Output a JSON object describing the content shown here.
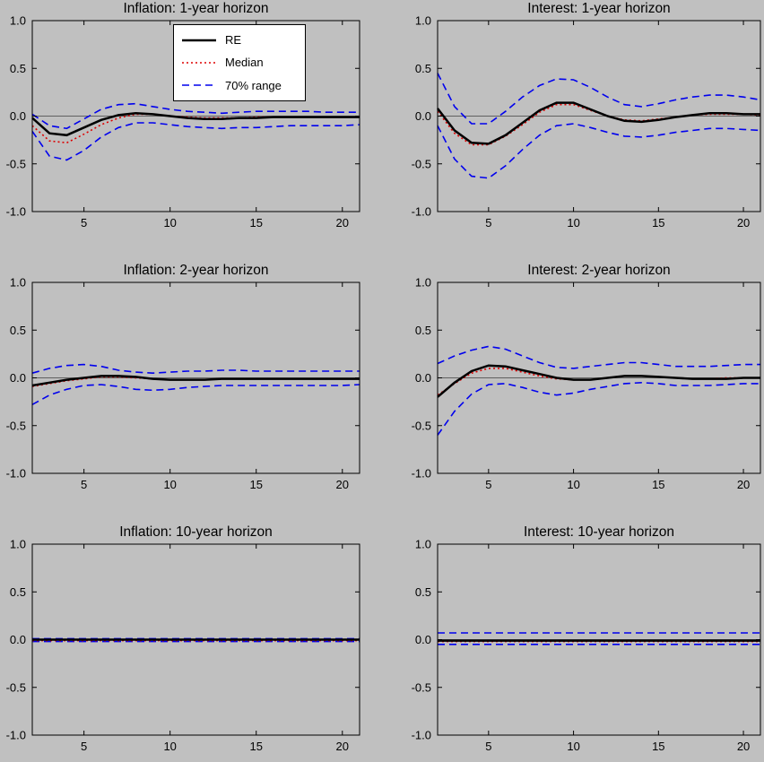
{
  "colors": {
    "background": "#c0c0c0",
    "axis": "#000000",
    "re": "#000000",
    "median": "#dd0000",
    "range": "#0000ee"
  },
  "legend": {
    "entries": [
      {
        "label": "RE",
        "color": "#000000",
        "line_style": "solid"
      },
      {
        "label": "Median",
        "color": "#dd0000",
        "line_style": "dotted"
      },
      {
        "label": "70% range",
        "color": "#0000ee",
        "line_style": "dashed"
      }
    ]
  },
  "chart_data": [
    {
      "type": "line",
      "title": "Inflation: 1-year horizon",
      "xlim": [
        2,
        21
      ],
      "ylim": [
        -1,
        1
      ],
      "xticks": [
        5,
        10,
        15,
        20
      ],
      "yticks": [
        -1.0,
        -0.5,
        0.0,
        0.5,
        1.0
      ],
      "x": [
        2,
        3,
        4,
        5,
        6,
        7,
        8,
        9,
        10,
        11,
        12,
        13,
        14,
        15,
        16,
        17,
        18,
        19,
        20,
        21
      ],
      "series": [
        {
          "name": "RE",
          "color": "#000000",
          "line_style": "solid",
          "values": [
            -0.02,
            -0.18,
            -0.2,
            -0.12,
            -0.04,
            0.01,
            0.03,
            0.02,
            0.0,
            -0.02,
            -0.03,
            -0.03,
            -0.02,
            -0.02,
            -0.01,
            -0.01,
            -0.01,
            -0.01,
            -0.01,
            -0.01
          ]
        },
        {
          "name": "Median",
          "color": "#dd0000",
          "line_style": "dotted",
          "values": [
            -0.1,
            -0.26,
            -0.28,
            -0.19,
            -0.09,
            -0.02,
            0.02,
            0.02,
            0.0,
            -0.01,
            -0.02,
            -0.02,
            -0.02,
            -0.01,
            -0.01,
            -0.01,
            -0.01,
            -0.01,
            -0.01,
            -0.01
          ]
        },
        {
          "name": "70% range upper",
          "color": "#0000ee",
          "line_style": "dashed",
          "values": [
            0.02,
            -0.1,
            -0.13,
            -0.03,
            0.07,
            0.12,
            0.13,
            0.1,
            0.07,
            0.05,
            0.04,
            0.03,
            0.04,
            0.05,
            0.05,
            0.05,
            0.05,
            0.04,
            0.04,
            0.04
          ]
        },
        {
          "name": "70% range lower",
          "color": "#0000ee",
          "line_style": "dashed",
          "values": [
            -0.16,
            -0.42,
            -0.46,
            -0.36,
            -0.22,
            -0.12,
            -0.07,
            -0.07,
            -0.09,
            -0.11,
            -0.12,
            -0.13,
            -0.12,
            -0.12,
            -0.11,
            -0.1,
            -0.1,
            -0.1,
            -0.1,
            -0.09
          ]
        }
      ]
    },
    {
      "type": "line",
      "title": "Interest: 1-year horizon",
      "xlim": [
        2,
        21
      ],
      "ylim": [
        -1,
        1
      ],
      "xticks": [
        5,
        10,
        15,
        20
      ],
      "yticks": [
        -1.0,
        -0.5,
        0.0,
        0.5,
        1.0
      ],
      "x": [
        2,
        3,
        4,
        5,
        6,
        7,
        8,
        9,
        10,
        11,
        12,
        13,
        14,
        15,
        16,
        17,
        18,
        19,
        20,
        21
      ],
      "series": [
        {
          "name": "RE",
          "color": "#000000",
          "line_style": "solid",
          "values": [
            0.08,
            -0.15,
            -0.28,
            -0.29,
            -0.2,
            -0.07,
            0.06,
            0.14,
            0.14,
            0.07,
            0.0,
            -0.05,
            -0.06,
            -0.04,
            -0.01,
            0.01,
            0.03,
            0.03,
            0.02,
            0.02
          ]
        },
        {
          "name": "Median",
          "color": "#dd0000",
          "line_style": "dotted",
          "values": [
            0.05,
            -0.18,
            -0.3,
            -0.3,
            -0.21,
            -0.09,
            0.04,
            0.12,
            0.12,
            0.06,
            0.0,
            -0.04,
            -0.05,
            -0.03,
            -0.01,
            0.01,
            0.02,
            0.02,
            0.02,
            0.01
          ]
        },
        {
          "name": "70% range upper",
          "color": "#0000ee",
          "line_style": "dashed",
          "values": [
            0.45,
            0.1,
            -0.08,
            -0.08,
            0.05,
            0.2,
            0.32,
            0.39,
            0.38,
            0.3,
            0.2,
            0.12,
            0.1,
            0.13,
            0.17,
            0.2,
            0.22,
            0.22,
            0.2,
            0.17
          ]
        },
        {
          "name": "70% range lower",
          "color": "#0000ee",
          "line_style": "dashed",
          "values": [
            -0.1,
            -0.45,
            -0.63,
            -0.65,
            -0.52,
            -0.35,
            -0.2,
            -0.1,
            -0.08,
            -0.12,
            -0.17,
            -0.21,
            -0.22,
            -0.2,
            -0.17,
            -0.15,
            -0.13,
            -0.13,
            -0.14,
            -0.15
          ]
        }
      ]
    },
    {
      "type": "line",
      "title": "Inflation: 2-year horizon",
      "xlim": [
        2,
        21
      ],
      "ylim": [
        -1,
        1
      ],
      "xticks": [
        5,
        10,
        15,
        20
      ],
      "yticks": [
        -1.0,
        -0.5,
        0.0,
        0.5,
        1.0
      ],
      "x": [
        2,
        3,
        4,
        5,
        6,
        7,
        8,
        9,
        10,
        11,
        12,
        13,
        14,
        15,
        16,
        17,
        18,
        19,
        20,
        21
      ],
      "series": [
        {
          "name": "RE",
          "color": "#000000",
          "line_style": "solid",
          "values": [
            -0.08,
            -0.05,
            -0.02,
            0.0,
            0.02,
            0.02,
            0.01,
            -0.01,
            -0.02,
            -0.02,
            -0.02,
            -0.01,
            -0.01,
            -0.01,
            -0.01,
            -0.01,
            -0.01,
            -0.01,
            -0.01,
            -0.01
          ]
        },
        {
          "name": "Median",
          "color": "#dd0000",
          "line_style": "dotted",
          "values": [
            -0.09,
            -0.06,
            -0.03,
            -0.01,
            0.01,
            0.01,
            0.0,
            -0.01,
            -0.02,
            -0.02,
            -0.02,
            -0.01,
            -0.01,
            -0.01,
            -0.01,
            -0.01,
            -0.01,
            -0.01,
            -0.01,
            -0.01
          ]
        },
        {
          "name": "70% range upper",
          "color": "#0000ee",
          "line_style": "dashed",
          "values": [
            0.05,
            0.1,
            0.13,
            0.14,
            0.12,
            0.08,
            0.06,
            0.05,
            0.06,
            0.07,
            0.07,
            0.08,
            0.08,
            0.07,
            0.07,
            0.07,
            0.07,
            0.07,
            0.07,
            0.07
          ]
        },
        {
          "name": "70% range lower",
          "color": "#0000ee",
          "line_style": "dashed",
          "values": [
            -0.28,
            -0.18,
            -0.12,
            -0.08,
            -0.07,
            -0.09,
            -0.12,
            -0.13,
            -0.12,
            -0.1,
            -0.09,
            -0.08,
            -0.08,
            -0.08,
            -0.08,
            -0.08,
            -0.08,
            -0.08,
            -0.08,
            -0.07
          ]
        }
      ]
    },
    {
      "type": "line",
      "title": "Interest: 2-year horizon",
      "xlim": [
        2,
        21
      ],
      "ylim": [
        -1,
        1
      ],
      "xticks": [
        5,
        10,
        15,
        20
      ],
      "yticks": [
        -1.0,
        -0.5,
        0.0,
        0.5,
        1.0
      ],
      "x": [
        2,
        3,
        4,
        5,
        6,
        7,
        8,
        9,
        10,
        11,
        12,
        13,
        14,
        15,
        16,
        17,
        18,
        19,
        20,
        21
      ],
      "series": [
        {
          "name": "RE",
          "color": "#000000",
          "line_style": "solid",
          "values": [
            -0.2,
            -0.05,
            0.07,
            0.13,
            0.12,
            0.08,
            0.04,
            0.0,
            -0.02,
            -0.02,
            0.0,
            0.02,
            0.02,
            0.01,
            0.0,
            -0.01,
            -0.01,
            -0.01,
            0.0,
            0.0
          ]
        },
        {
          "name": "Median",
          "color": "#dd0000",
          "line_style": "dotted",
          "values": [
            -0.18,
            -0.06,
            0.05,
            0.1,
            0.1,
            0.06,
            0.02,
            -0.01,
            -0.02,
            -0.02,
            0.0,
            0.02,
            0.02,
            0.01,
            0.0,
            -0.01,
            -0.01,
            0.0,
            0.0,
            0.0
          ]
        },
        {
          "name": "70% range upper",
          "color": "#0000ee",
          "line_style": "dashed",
          "values": [
            0.15,
            0.23,
            0.29,
            0.33,
            0.3,
            0.23,
            0.16,
            0.11,
            0.1,
            0.12,
            0.14,
            0.16,
            0.16,
            0.14,
            0.12,
            0.12,
            0.12,
            0.13,
            0.14,
            0.14
          ]
        },
        {
          "name": "70% range lower",
          "color": "#0000ee",
          "line_style": "dashed",
          "values": [
            -0.6,
            -0.35,
            -0.17,
            -0.07,
            -0.06,
            -0.1,
            -0.15,
            -0.18,
            -0.16,
            -0.12,
            -0.09,
            -0.06,
            -0.05,
            -0.06,
            -0.08,
            -0.08,
            -0.08,
            -0.07,
            -0.06,
            -0.06
          ]
        }
      ]
    },
    {
      "type": "line",
      "title": "Inflation: 10-year horizon",
      "xlim": [
        2,
        21
      ],
      "ylim": [
        -1,
        1
      ],
      "xticks": [
        5,
        10,
        15,
        20
      ],
      "yticks": [
        -1.0,
        -0.5,
        0.0,
        0.5,
        1.0
      ],
      "x": [
        2,
        3,
        4,
        5,
        6,
        7,
        8,
        9,
        10,
        11,
        12,
        13,
        14,
        15,
        16,
        17,
        18,
        19,
        20,
        21
      ],
      "series": [
        {
          "name": "RE",
          "color": "#000000",
          "line_style": "solid",
          "values": [
            0,
            0,
            0,
            0,
            0,
            0,
            0,
            0,
            0,
            0,
            0,
            0,
            0,
            0,
            0,
            0,
            0,
            0,
            0,
            0
          ]
        },
        {
          "name": "Median",
          "color": "#dd0000",
          "line_style": "dotted",
          "values": [
            -0.01,
            -0.01,
            -0.01,
            -0.01,
            -0.01,
            -0.01,
            -0.01,
            -0.01,
            -0.01,
            -0.01,
            -0.01,
            -0.01,
            -0.01,
            -0.01,
            -0.01,
            -0.01,
            -0.01,
            -0.01,
            -0.01,
            -0.01
          ]
        },
        {
          "name": "70% range upper",
          "color": "#0000ee",
          "line_style": "dashed",
          "values": [
            0.01,
            0.01,
            0.01,
            0.01,
            0.01,
            0.01,
            0.01,
            0.01,
            0.01,
            0.01,
            0.01,
            0.01,
            0.01,
            0.01,
            0.01,
            0.01,
            0.01,
            0.01,
            0.01,
            0.01
          ]
        },
        {
          "name": "70% range lower",
          "color": "#0000ee",
          "line_style": "dashed",
          "values": [
            -0.02,
            -0.02,
            -0.02,
            -0.02,
            -0.02,
            -0.02,
            -0.02,
            -0.02,
            -0.02,
            -0.02,
            -0.02,
            -0.02,
            -0.02,
            -0.02,
            -0.02,
            -0.02,
            -0.02,
            -0.02,
            -0.02,
            -0.02
          ]
        }
      ]
    },
    {
      "type": "line",
      "title": "Interest: 10-year horizon",
      "xlim": [
        2,
        21
      ],
      "ylim": [
        -1,
        1
      ],
      "xticks": [
        5,
        10,
        15,
        20
      ],
      "yticks": [
        -1.0,
        -0.5,
        0.0,
        0.5,
        1.0
      ],
      "x": [
        2,
        3,
        4,
        5,
        6,
        7,
        8,
        9,
        10,
        11,
        12,
        13,
        14,
        15,
        16,
        17,
        18,
        19,
        20,
        21
      ],
      "series": [
        {
          "name": "RE",
          "color": "#000000",
          "line_style": "solid",
          "values": [
            -0.01,
            -0.01,
            -0.01,
            -0.01,
            -0.01,
            -0.01,
            -0.01,
            -0.01,
            -0.01,
            -0.01,
            -0.01,
            -0.01,
            -0.01,
            -0.01,
            -0.01,
            -0.01,
            -0.01,
            -0.01,
            -0.01,
            -0.01
          ]
        },
        {
          "name": "Median",
          "color": "#dd0000",
          "line_style": "dotted",
          "values": [
            -0.02,
            -0.02,
            -0.02,
            -0.02,
            -0.02,
            -0.02,
            -0.02,
            -0.02,
            -0.02,
            -0.02,
            -0.02,
            -0.02,
            -0.02,
            -0.02,
            -0.02,
            -0.02,
            -0.02,
            -0.02,
            -0.02,
            -0.02
          ]
        },
        {
          "name": "70% range upper",
          "color": "#0000ee",
          "line_style": "dashed",
          "values": [
            0.07,
            0.07,
            0.07,
            0.07,
            0.07,
            0.07,
            0.07,
            0.07,
            0.07,
            0.07,
            0.07,
            0.07,
            0.07,
            0.07,
            0.07,
            0.07,
            0.07,
            0.07,
            0.07,
            0.07
          ]
        },
        {
          "name": "70% range lower",
          "color": "#0000ee",
          "line_style": "dashed",
          "values": [
            -0.05,
            -0.05,
            -0.05,
            -0.05,
            -0.05,
            -0.05,
            -0.05,
            -0.05,
            -0.05,
            -0.05,
            -0.05,
            -0.05,
            -0.05,
            -0.05,
            -0.05,
            -0.05,
            -0.05,
            -0.05,
            -0.05,
            -0.05
          ]
        }
      ]
    }
  ]
}
